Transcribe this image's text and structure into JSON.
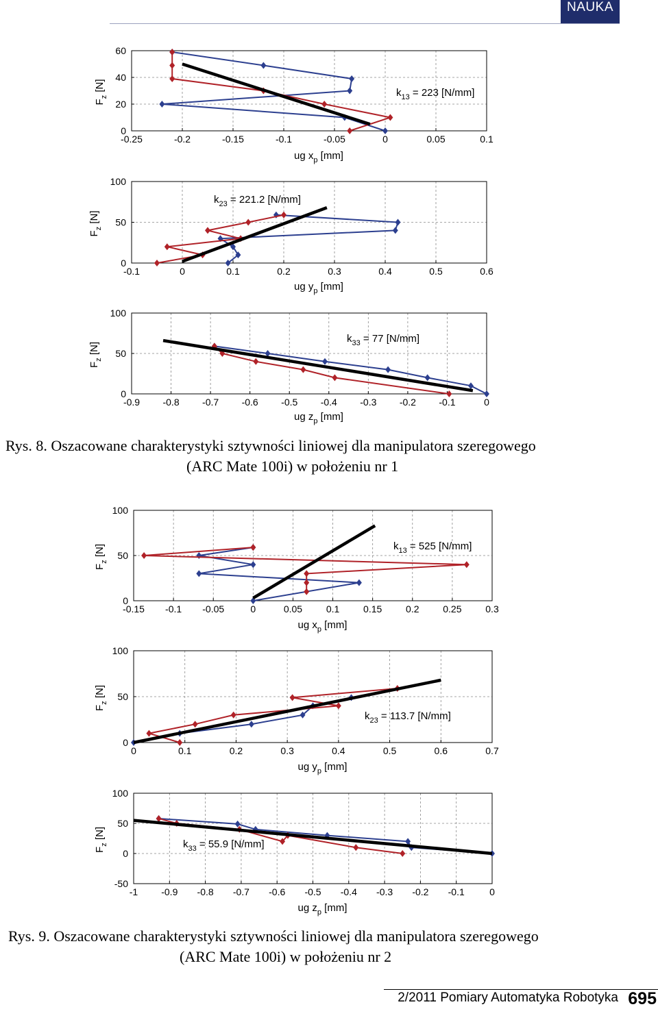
{
  "header": {
    "section": "NAUKA"
  },
  "colors": {
    "series_a": "#2c3f8f",
    "series_b": "#b02228",
    "fit": "#000000",
    "grid": "#888888"
  },
  "figures": [
    {
      "label": "Rys. 8.",
      "caption_line1": "Oszacowane charakterystyki sztywności liniowej dla manipulatora szeregowego",
      "caption_line2": "(ARC Mate 100i) w położeniu nr 1"
    },
    {
      "label": "Rys. 9.",
      "caption_line1": "Oszacowane charakterystyki sztywności liniowej dla manipulatora szeregowego",
      "caption_line2": "(ARC Mate 100i) w położeniu nr 2"
    }
  ],
  "chart_data": [
    {
      "type": "line",
      "xlabel": "ug x",
      "xlabel_sub": "p",
      "xlabel_unit": " [mm]",
      "ylabel": "F",
      "ylabel_sub": "z",
      "ylabel_unit": " [N]",
      "annotation": "k",
      "annotation_sub": "13",
      "annotation_rest": " = 223 [N/mm]",
      "xlim": [
        -0.25,
        0.1
      ],
      "ylim": [
        0,
        60
      ],
      "xticks": [
        "-0.25",
        "-0.2",
        "-0.15",
        "-0.1",
        "-0.05",
        "0",
        "0.05",
        "0.1"
      ],
      "yticks": [
        "0",
        "20",
        "40",
        "60"
      ],
      "grid": true,
      "series": [
        {
          "color": "series_a",
          "points": [
            [
              0,
              0
            ],
            [
              -0.04,
              10
            ],
            [
              -0.22,
              20
            ],
            [
              -0.035,
              30
            ],
            [
              -0.033,
              39
            ],
            [
              -0.12,
              49
            ],
            [
              -0.21,
              59
            ]
          ]
        },
        {
          "color": "series_b",
          "points": [
            [
              -0.035,
              0
            ],
            [
              0.005,
              10
            ],
            [
              -0.06,
              20
            ],
            [
              -0.12,
              30
            ],
            [
              -0.21,
              39
            ],
            [
              -0.21,
              49
            ],
            [
              -0.21,
              59
            ]
          ]
        },
        {
          "color": "fit",
          "thick": true,
          "points": [
            [
              -0.2,
              50
            ],
            [
              -0.015,
              5
            ]
          ]
        }
      ]
    },
    {
      "type": "line",
      "xlabel": "ug y",
      "xlabel_sub": "p",
      "xlabel_unit": " [mm]",
      "ylabel": "F",
      "ylabel_sub": "z",
      "ylabel_unit": " [N]",
      "annotation": "k",
      "annotation_sub": "23",
      "annotation_rest": " = 221.2 [N/mm]",
      "xlim": [
        -0.1,
        0.6
      ],
      "ylim": [
        0,
        100
      ],
      "xticks": [
        "-0.1",
        "0",
        "0.1",
        "0.2",
        "0.3",
        "0.4",
        "0.5",
        "0.6"
      ],
      "yticks": [
        "0",
        "50",
        "100"
      ],
      "grid": true,
      "series": [
        {
          "color": "series_a",
          "points": [
            [
              0.09,
              0
            ],
            [
              0.11,
              10
            ],
            [
              0.1,
              20
            ],
            [
              0.075,
              30
            ],
            [
              0.42,
              40
            ],
            [
              0.425,
              50
            ],
            [
              0.185,
              59
            ]
          ]
        },
        {
          "color": "series_b",
          "points": [
            [
              -0.05,
              0
            ],
            [
              0.04,
              10
            ],
            [
              -0.03,
              20
            ],
            [
              0.115,
              30
            ],
            [
              0.05,
              40
            ],
            [
              0.13,
              50
            ],
            [
              0.2,
              59
            ]
          ]
        },
        {
          "color": "fit",
          "thick": true,
          "points": [
            [
              0,
              2
            ],
            [
              0.285,
              68
            ]
          ]
        }
      ]
    },
    {
      "type": "line",
      "xlabel": "ug z",
      "xlabel_sub": "p",
      "xlabel_unit": " [mm]",
      "ylabel": "F",
      "ylabel_sub": "z",
      "ylabel_unit": " [N]",
      "annotation": "k",
      "annotation_sub": "33",
      "annotation_rest": " = 77 [N/mm]",
      "xlim": [
        -0.9,
        0
      ],
      "ylim": [
        0,
        100
      ],
      "xticks": [
        "-0.9",
        "-0.8",
        "-0.7",
        "-0.6",
        "-0.5",
        "-0.4",
        "-0.3",
        "-0.2",
        "-0.1",
        "0"
      ],
      "yticks": [
        "0",
        "50",
        "100"
      ],
      "grid": true,
      "series": [
        {
          "color": "series_a",
          "points": [
            [
              0,
              0
            ],
            [
              -0.04,
              10
            ],
            [
              -0.15,
              20
            ],
            [
              -0.25,
              30
            ],
            [
              -0.41,
              40
            ],
            [
              -0.555,
              50
            ],
            [
              -0.69,
              59
            ]
          ]
        },
        {
          "color": "series_b",
          "points": [
            [
              -0.095,
              0
            ],
            [
              -0.385,
              20
            ],
            [
              -0.465,
              30
            ],
            [
              -0.585,
              40
            ],
            [
              -0.67,
              50
            ],
            [
              -0.69,
              59
            ]
          ]
        },
        {
          "color": "fit",
          "thick": true,
          "points": [
            [
              -0.82,
              66
            ],
            [
              -0.035,
              4
            ]
          ]
        }
      ]
    },
    {
      "type": "line",
      "xlabel": "ug x",
      "xlabel_sub": "p",
      "xlabel_unit": " [mm]",
      "ylabel": "F",
      "ylabel_sub": "z",
      "ylabel_unit": " [N]",
      "annotation": "k",
      "annotation_sub": "13",
      "annotation_rest": " = 525 [N/mm]",
      "xlim": [
        -0.15,
        0.3
      ],
      "ylim": [
        0,
        100
      ],
      "xticks": [
        "-0.15",
        "-0.1",
        "-0.05",
        "0",
        "0.05",
        "0.1",
        "0.15",
        "0.2",
        "0.25",
        "0.3"
      ],
      "yticks": [
        "0",
        "50",
        "100"
      ],
      "grid": true,
      "series": [
        {
          "color": "series_a",
          "points": [
            [
              0,
              0
            ],
            [
              0.133,
              20
            ],
            [
              -0.068,
              30
            ],
            [
              0,
              40
            ],
            [
              -0.068,
              50
            ],
            [
              0,
              59
            ]
          ]
        },
        {
          "color": "series_b",
          "points": [
            [
              0.067,
              10
            ],
            [
              0.067,
              20
            ],
            [
              0.067,
              30
            ],
            [
              0.268,
              40
            ],
            [
              -0.137,
              50
            ],
            [
              0,
              59
            ]
          ]
        },
        {
          "color": "fit",
          "thick": true,
          "points": [
            [
              0,
              3
            ],
            [
              0.153,
              83
            ]
          ]
        }
      ]
    },
    {
      "type": "line",
      "xlabel": "ug y",
      "xlabel_sub": "p",
      "xlabel_unit": " [mm]",
      "ylabel": "F",
      "ylabel_sub": "z",
      "ylabel_unit": " [N]",
      "annotation": "k",
      "annotation_sub": "23",
      "annotation_rest": " = 113.7 [N/mm]",
      "xlim": [
        0,
        0.7
      ],
      "ylim": [
        0,
        100
      ],
      "xticks": [
        "0",
        "0.1",
        "0.2",
        "0.3",
        "0.4",
        "0.5",
        "0.6",
        "0.7"
      ],
      "yticks": [
        "0",
        "50",
        "100"
      ],
      "grid": true,
      "series": [
        {
          "color": "series_a",
          "points": [
            [
              0,
              0
            ],
            [
              0.09,
              10
            ],
            [
              0.23,
              20
            ],
            [
              0.33,
              30
            ],
            [
              0.35,
              40
            ],
            [
              0.425,
              49
            ]
          ]
        },
        {
          "color": "series_b",
          "points": [
            [
              0.09,
              0
            ],
            [
              0.03,
              10
            ],
            [
              0.12,
              20
            ],
            [
              0.195,
              30
            ],
            [
              0.4,
              40
            ],
            [
              0.31,
              49
            ],
            [
              0.515,
              59
            ]
          ]
        },
        {
          "color": "fit",
          "thick": true,
          "points": [
            [
              0,
              0
            ],
            [
              0.6,
              68
            ]
          ]
        }
      ]
    },
    {
      "type": "line",
      "xlabel": "ug z",
      "xlabel_sub": "p",
      "xlabel_unit": " [mm]",
      "ylabel": "F",
      "ylabel_sub": "z",
      "ylabel_unit": " [N]",
      "annotation": "k",
      "annotation_sub": "33",
      "annotation_rest": " = 55.9 [N/mm]",
      "xlim": [
        -1,
        0
      ],
      "ylim": [
        -50,
        100
      ],
      "xticks": [
        "-1",
        "-0.9",
        "-0.8",
        "-0.7",
        "-0.6",
        "-0.5",
        "-0.4",
        "-0.3",
        "-0.2",
        "-0.1",
        "0"
      ],
      "yticks": [
        "-50",
        "0",
        "50",
        "100"
      ],
      "grid": true,
      "series": [
        {
          "color": "series_a",
          "points": [
            [
              0,
              0
            ],
            [
              -0.225,
              10
            ],
            [
              -0.235,
              20
            ],
            [
              -0.46,
              30
            ],
            [
              -0.66,
              40
            ],
            [
              -0.71,
              49
            ],
            [
              -0.93,
              58
            ]
          ]
        },
        {
          "color": "series_b",
          "points": [
            [
              -0.25,
              0
            ],
            [
              -0.38,
              10
            ],
            [
              -0.57,
              30
            ],
            [
              -0.585,
              20
            ],
            [
              -0.705,
              40
            ],
            [
              -0.88,
              50
            ],
            [
              -0.93,
              58
            ]
          ]
        },
        {
          "color": "fit",
          "thick": true,
          "points": [
            [
              -1,
              55
            ],
            [
              0,
              0
            ]
          ]
        }
      ]
    }
  ],
  "footer": {
    "journal": "2/2011 Pomiary Automatyka Robotyka",
    "page": "695"
  }
}
